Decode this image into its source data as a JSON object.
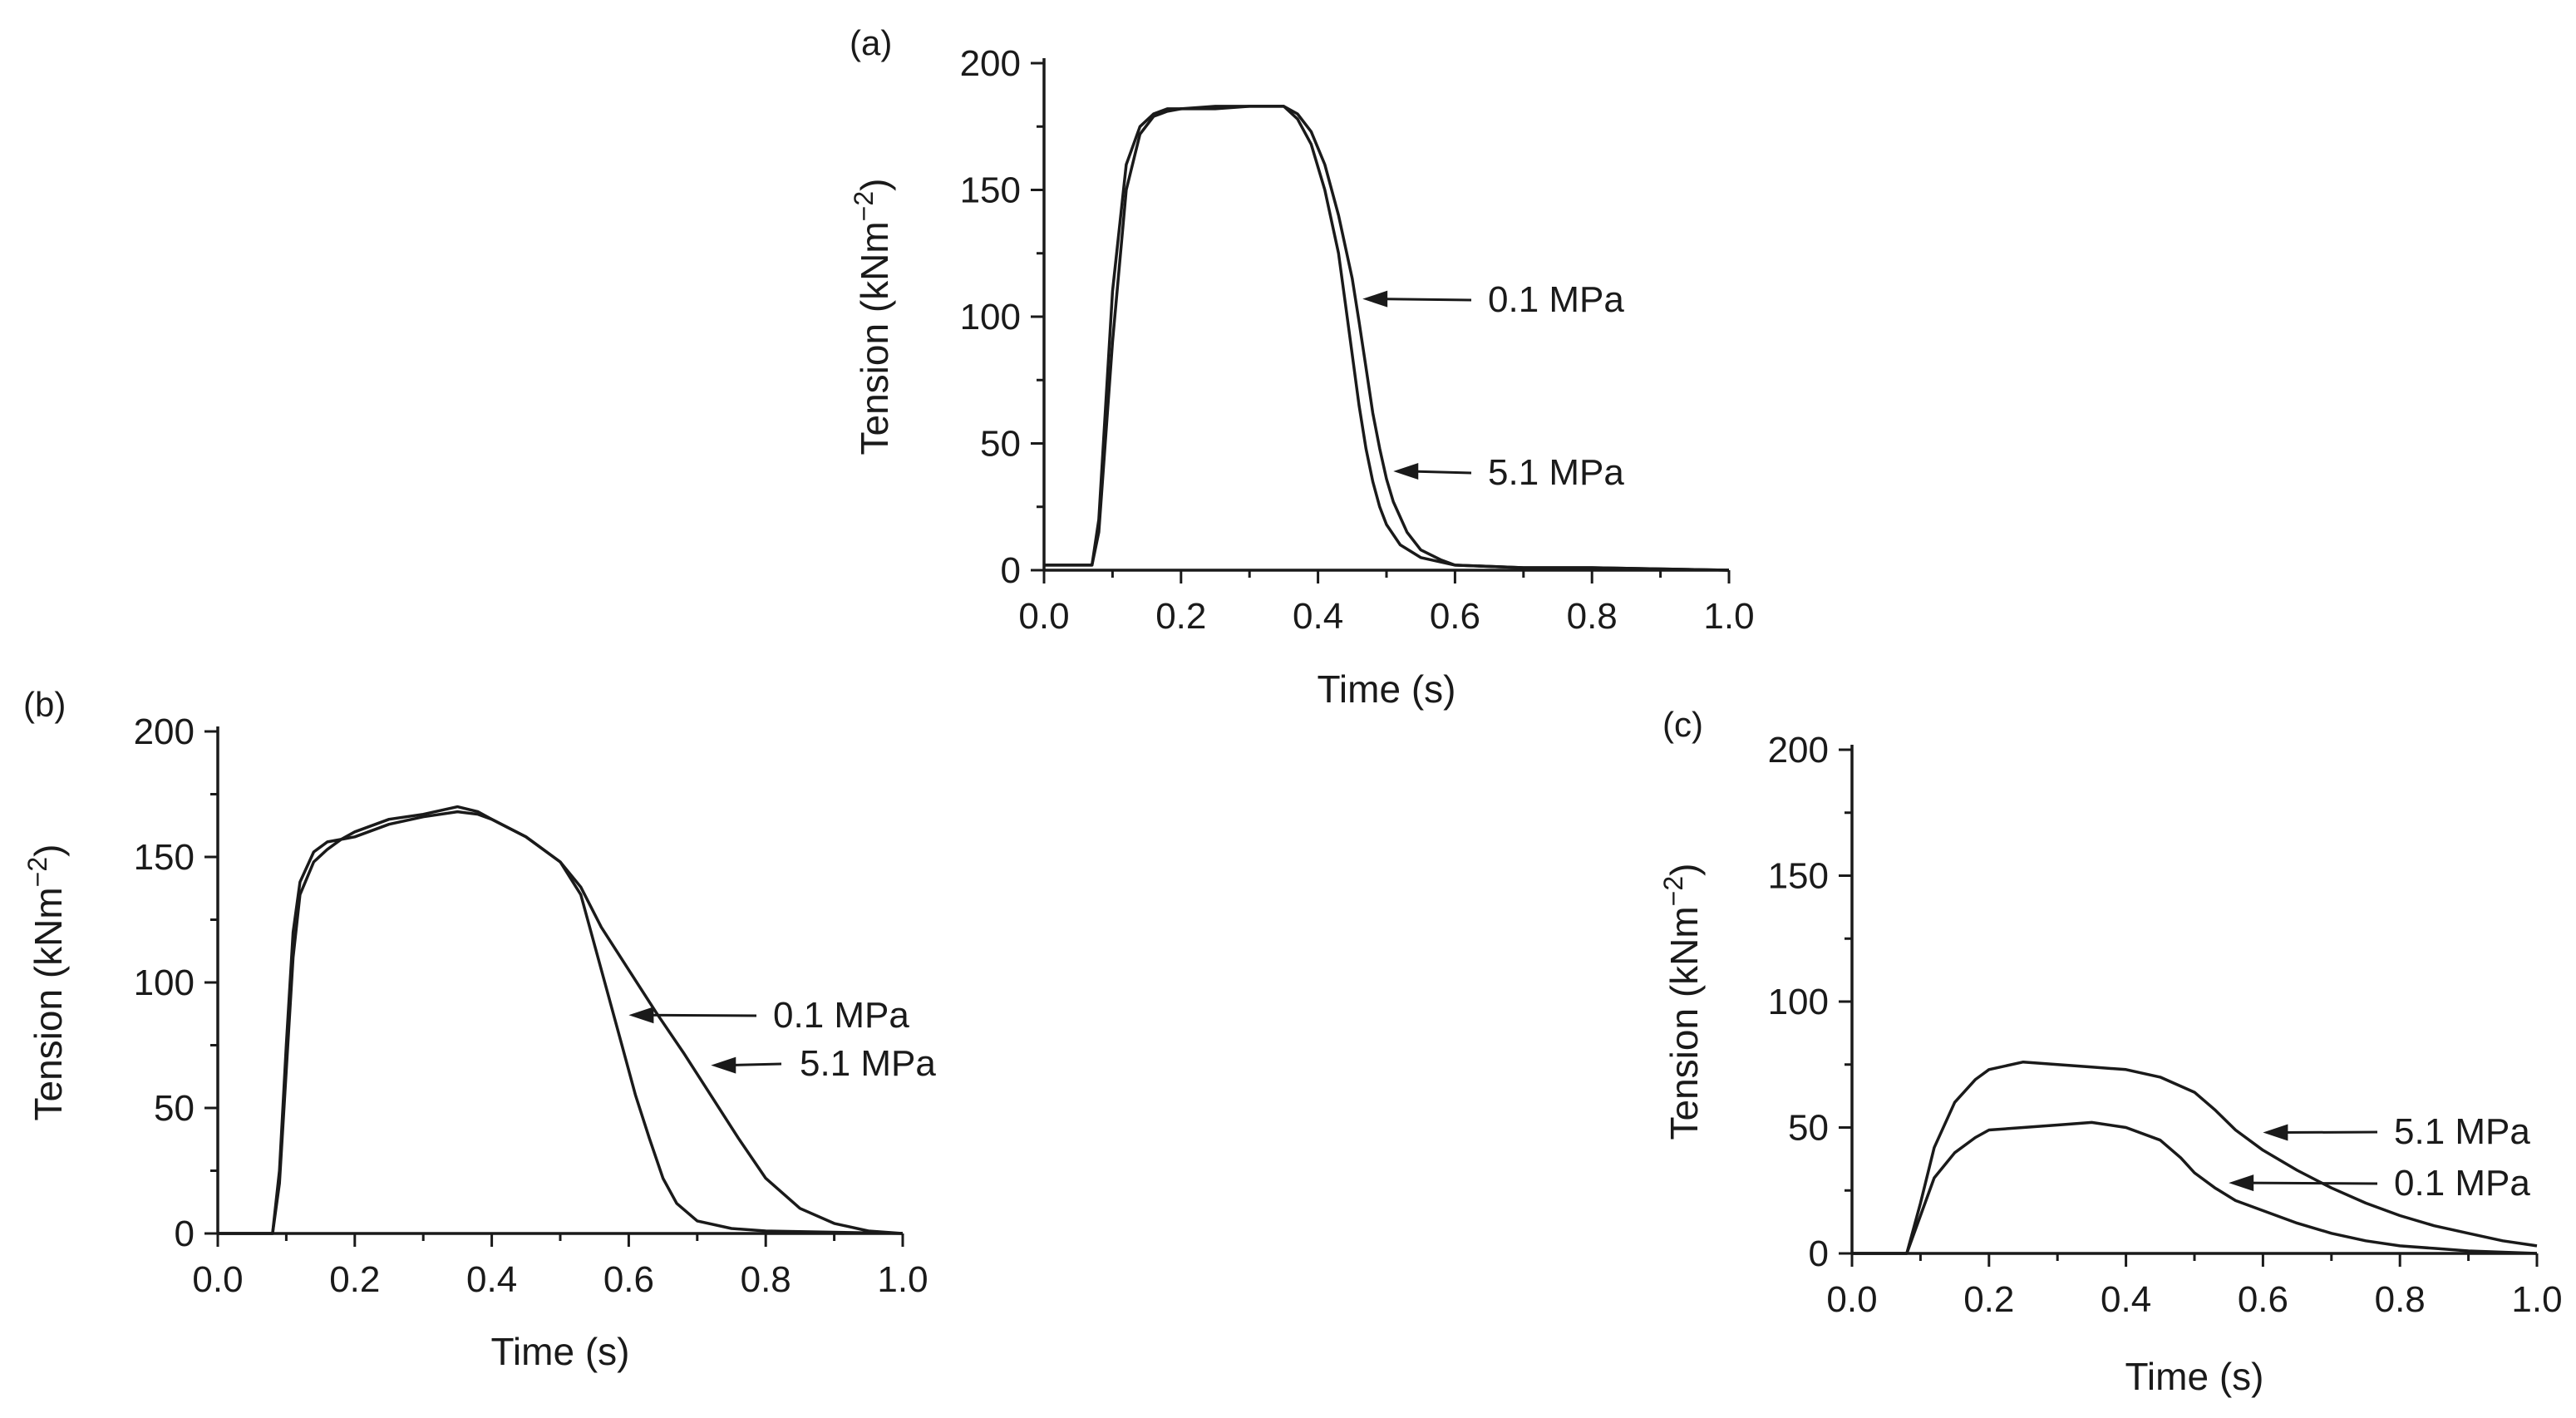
{
  "chart_data": [
    {
      "panel": "(a)",
      "type": "line",
      "xlabel": "Time (s)",
      "ylabel": "Tension (kNm",
      "ylabel_sup": "−2",
      "ylabel_close": ")",
      "xlim": [
        0.0,
        1.0
      ],
      "ylim": [
        0,
        200
      ],
      "xticks": [
        "0.0",
        "0.2",
        "0.4",
        "0.6",
        "0.8",
        "1.0"
      ],
      "yticks": [
        "0",
        "50",
        "100",
        "150",
        "200"
      ],
      "series": [
        {
          "name": "0.1 MPa",
          "x": [
            0.0,
            0.07,
            0.08,
            0.1,
            0.12,
            0.14,
            0.16,
            0.18,
            0.2,
            0.25,
            0.3,
            0.35,
            0.37,
            0.39,
            0.41,
            0.43,
            0.44,
            0.45,
            0.46,
            0.47,
            0.48,
            0.49,
            0.5,
            0.52,
            0.55,
            0.6,
            0.7,
            0.8,
            1.0
          ],
          "y": [
            2,
            2,
            20,
            110,
            160,
            175,
            180,
            182,
            182,
            182,
            183,
            183,
            178,
            168,
            150,
            125,
            105,
            85,
            65,
            48,
            35,
            25,
            18,
            10,
            5,
            2,
            1,
            1,
            0
          ]
        },
        {
          "name": "5.1 MPa",
          "x": [
            0.0,
            0.07,
            0.08,
            0.1,
            0.12,
            0.14,
            0.16,
            0.18,
            0.2,
            0.25,
            0.3,
            0.35,
            0.37,
            0.39,
            0.41,
            0.43,
            0.45,
            0.46,
            0.47,
            0.48,
            0.49,
            0.5,
            0.51,
            0.53,
            0.55,
            0.58,
            0.6,
            0.7,
            0.8,
            1.0
          ],
          "y": [
            2,
            2,
            15,
            90,
            150,
            172,
            179,
            181,
            182,
            183,
            183,
            183,
            180,
            173,
            160,
            140,
            115,
            98,
            80,
            62,
            48,
            36,
            27,
            15,
            8,
            4,
            2,
            1,
            1,
            0
          ]
        }
      ],
      "annotations": [
        {
          "label": "0.1 MPa",
          "target": [
            0.465,
            107
          ]
        },
        {
          "label": "5.1 MPa",
          "target": [
            0.51,
            39
          ]
        }
      ]
    },
    {
      "panel": "(b)",
      "type": "line",
      "xlabel": "Time (s)",
      "ylabel": "Tension (kNm",
      "ylabel_sup": "−2",
      "ylabel_close": ")",
      "xlim": [
        0.0,
        1.0
      ],
      "ylim": [
        0,
        200
      ],
      "xticks": [
        "0.0",
        "0.2",
        "0.4",
        "0.6",
        "0.8",
        "1.0"
      ],
      "yticks": [
        "0",
        "50",
        "100",
        "150",
        "200"
      ],
      "series": [
        {
          "name": "0.1 MPa",
          "x": [
            0.0,
            0.08,
            0.09,
            0.1,
            0.11,
            0.12,
            0.14,
            0.16,
            0.18,
            0.2,
            0.25,
            0.3,
            0.35,
            0.38,
            0.4,
            0.45,
            0.5,
            0.53,
            0.55,
            0.57,
            0.59,
            0.61,
            0.63,
            0.65,
            0.67,
            0.7,
            0.75,
            0.8,
            1.0
          ],
          "y": [
            0,
            0,
            25,
            75,
            120,
            140,
            152,
            156,
            157,
            160,
            165,
            167,
            170,
            168,
            165,
            158,
            148,
            135,
            115,
            95,
            75,
            55,
            38,
            22,
            12,
            5,
            2,
            1,
            0
          ]
        },
        {
          "name": "5.1 MPa",
          "x": [
            0.0,
            0.08,
            0.09,
            0.1,
            0.11,
            0.12,
            0.14,
            0.16,
            0.18,
            0.2,
            0.25,
            0.3,
            0.35,
            0.38,
            0.4,
            0.45,
            0.5,
            0.53,
            0.56,
            0.6,
            0.64,
            0.68,
            0.72,
            0.76,
            0.8,
            0.85,
            0.9,
            0.95,
            1.0
          ],
          "y": [
            0,
            0,
            20,
            65,
            110,
            135,
            148,
            153,
            157,
            158,
            163,
            166,
            168,
            167,
            165,
            158,
            148,
            138,
            122,
            105,
            88,
            72,
            55,
            38,
            22,
            10,
            4,
            1,
            0
          ]
        }
      ],
      "annotations": [
        {
          "label": "0.1 MPa",
          "target": [
            0.6,
            87
          ]
        },
        {
          "label": "5.1 MPa",
          "target": [
            0.72,
            67
          ]
        }
      ]
    },
    {
      "panel": "(c)",
      "type": "line",
      "xlabel": "Time (s)",
      "ylabel": "Tension (kNm",
      "ylabel_sup": "−2",
      "ylabel_close": ")",
      "xlim": [
        0.0,
        1.0
      ],
      "ylim": [
        0,
        200
      ],
      "xticks": [
        "0.0",
        "0.2",
        "0.4",
        "0.6",
        "0.8",
        "1.0"
      ],
      "yticks": [
        "0",
        "50",
        "100",
        "150",
        "200"
      ],
      "series": [
        {
          "name": "5.1 MPa",
          "x": [
            0.0,
            0.08,
            0.1,
            0.12,
            0.15,
            0.18,
            0.2,
            0.25,
            0.3,
            0.35,
            0.4,
            0.45,
            0.5,
            0.53,
            0.56,
            0.6,
            0.65,
            0.7,
            0.75,
            0.8,
            0.85,
            0.9,
            0.95,
            1.0
          ],
          "y": [
            0,
            0,
            20,
            42,
            60,
            69,
            73,
            76,
            75,
            74,
            73,
            70,
            64,
            57,
            49,
            41,
            33,
            26,
            20,
            15,
            11,
            8,
            5,
            3
          ]
        },
        {
          "name": "0.1 MPa",
          "x": [
            0.0,
            0.08,
            0.1,
            0.12,
            0.15,
            0.18,
            0.2,
            0.25,
            0.3,
            0.35,
            0.4,
            0.45,
            0.48,
            0.5,
            0.53,
            0.56,
            0.6,
            0.65,
            0.7,
            0.75,
            0.8,
            0.85,
            0.9,
            1.0
          ],
          "y": [
            0,
            0,
            15,
            30,
            40,
            46,
            49,
            50,
            51,
            52,
            50,
            45,
            38,
            32,
            26,
            21,
            17,
            12,
            8,
            5,
            3,
            2,
            1,
            0
          ]
        }
      ],
      "annotations": [
        {
          "label": "5.1 MPa",
          "target": [
            0.6,
            48
          ]
        },
        {
          "label": "0.1 MPa",
          "target": [
            0.55,
            28
          ]
        }
      ]
    }
  ]
}
